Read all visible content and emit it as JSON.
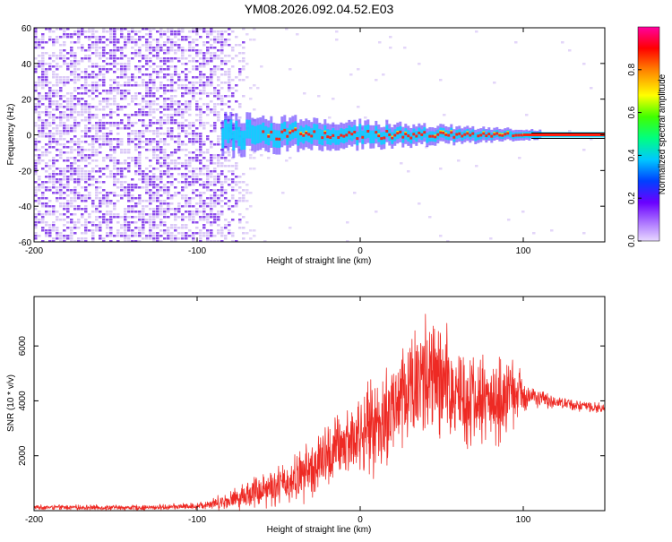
{
  "chart_data": [
    {
      "type": "heatmap",
      "title": "YM08.2026.092.04.52.E03",
      "xlabel": "Height of straight line (km)",
      "ylabel": "Frequency (Hz)",
      "xlim": [
        -200,
        150
      ],
      "ylim": [
        -60,
        60
      ],
      "xticks": [
        -200,
        -100,
        0,
        100
      ],
      "yticks": [
        -60,
        -40,
        -20,
        0,
        20,
        40,
        60
      ],
      "colorbar": {
        "label": "Normalized spectral amplitude",
        "range": [
          0.0,
          1.0
        ],
        "ticks": [
          "0.0",
          "0.2",
          "0.4",
          "0.6",
          "0.8"
        ],
        "tick_values": [
          0.0,
          0.2,
          0.4,
          0.6,
          0.8
        ]
      },
      "features": {
        "noise_region_x": [
          -200,
          -72
        ],
        "signal_start_x": -85,
        "signal_center_freq_hz": 0,
        "signal_band_halfwidth_hz_near_start": 8,
        "signal_band_halfwidth_hz_far": 2,
        "reference_line_x_start": 105,
        "reference_line_freqs_hz": [
          1,
          -2
        ]
      },
      "colors": {
        "noise": "#7a2ee8",
        "noise_light": "#d7c4f6",
        "weak": "#4a1cff",
        "mid": "#00d8ff",
        "peak": "#ff2010",
        "strong": "#ffee00",
        "line": "#000000"
      }
    },
    {
      "type": "line",
      "title": "",
      "xlabel": "Height of straight line (km)",
      "ylabel": "SNR (10 * v/v)",
      "xlim": [
        -200,
        150
      ],
      "ylim": [
        0,
        7800
      ],
      "xticks": [
        -200,
        -100,
        0,
        100
      ],
      "yticks": [
        2000,
        4000,
        6000
      ],
      "series": [
        {
          "name": "SNR",
          "color": "#ee2a24",
          "envelope": [
            {
              "x": -200,
              "mean": 120,
              "amp": 100
            },
            {
              "x": -130,
              "mean": 110,
              "amp": 110
            },
            {
              "x": -100,
              "mean": 170,
              "amp": 140
            },
            {
              "x": -80,
              "mean": 380,
              "amp": 380
            },
            {
              "x": -60,
              "mean": 800,
              "amp": 800
            },
            {
              "x": -45,
              "mean": 1000,
              "amp": 900
            },
            {
              "x": -30,
              "mean": 1500,
              "amp": 1300
            },
            {
              "x": -15,
              "mean": 2200,
              "amp": 1500
            },
            {
              "x": 0,
              "mean": 2800,
              "amp": 1700
            },
            {
              "x": 15,
              "mean": 3300,
              "amp": 2200
            },
            {
              "x": 25,
              "mean": 4100,
              "amp": 2400
            },
            {
              "x": 35,
              "mean": 4800,
              "amp": 2900
            },
            {
              "x": 45,
              "mean": 4700,
              "amp": 2900
            },
            {
              "x": 60,
              "mean": 4300,
              "amp": 2300
            },
            {
              "x": 75,
              "mean": 4000,
              "amp": 1900
            },
            {
              "x": 85,
              "mean": 4000,
              "amp": 1900
            },
            {
              "x": 95,
              "mean": 4300,
              "amp": 1400
            },
            {
              "x": 105,
              "mean": 4150,
              "amp": 450
            },
            {
              "x": 120,
              "mean": 3950,
              "amp": 250
            },
            {
              "x": 150,
              "mean": 3700,
              "amp": 220
            }
          ]
        }
      ]
    }
  ]
}
